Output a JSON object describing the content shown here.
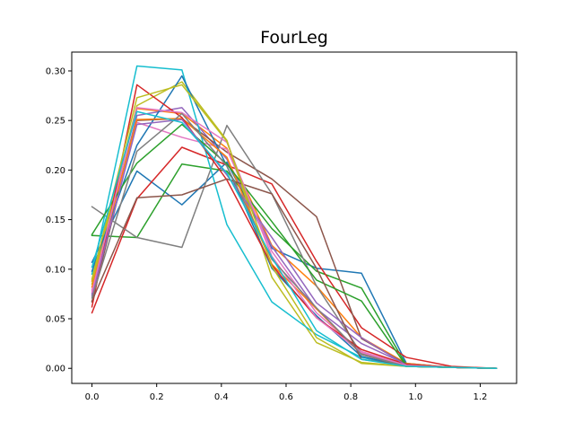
{
  "chart_data": {
    "type": "line",
    "title": "FourLeg",
    "xlabel": "",
    "ylabel": "",
    "xlim": [
      -0.0625,
      1.3125
    ],
    "ylim": [
      -0.0152,
      0.319
    ],
    "xticks": [
      0.0,
      0.2,
      0.4,
      0.6,
      0.8,
      1.0,
      1.2
    ],
    "xtick_labels": [
      "0.0",
      "0.2",
      "0.4",
      "0.6",
      "0.8",
      "1.0",
      "1.2"
    ],
    "yticks": [
      0.0,
      0.05,
      0.1,
      0.15,
      0.2,
      0.25,
      0.3
    ],
    "ytick_labels": [
      "0.00",
      "0.05",
      "0.10",
      "0.15",
      "0.20",
      "0.25",
      "0.30"
    ],
    "grid": false,
    "legend": "none",
    "x": [
      0.0,
      0.139,
      0.278,
      0.417,
      0.556,
      0.694,
      0.833,
      0.972,
      1.111,
      1.25
    ],
    "series": [
      {
        "color": "#1f77b4",
        "values": [
          0.107,
          0.199,
          0.165,
          0.208,
          0.121,
          0.101,
          0.096,
          0.005,
          0.001,
          0.0
        ]
      },
      {
        "color": "#ff7f0e",
        "values": [
          0.088,
          0.262,
          0.257,
          0.222,
          0.124,
          0.083,
          0.031,
          0.005,
          0.001,
          0.0
        ]
      },
      {
        "color": "#2ca02c",
        "values": [
          0.134,
          0.132,
          0.206,
          0.199,
          0.141,
          0.098,
          0.081,
          0.003,
          0.001,
          0.0
        ]
      },
      {
        "color": "#d62728",
        "values": [
          0.056,
          0.171,
          0.223,
          0.205,
          0.186,
          0.108,
          0.041,
          0.011,
          0.002,
          0.0
        ]
      },
      {
        "color": "#9467bd",
        "values": [
          0.075,
          0.255,
          0.263,
          0.211,
          0.123,
          0.06,
          0.025,
          0.004,
          0.001,
          0.0
        ]
      },
      {
        "color": "#8c564b",
        "values": [
          0.067,
          0.25,
          0.252,
          0.218,
          0.191,
          0.153,
          0.03,
          0.004,
          0.001,
          0.0
        ]
      },
      {
        "color": "#e377c2",
        "values": [
          0.079,
          0.248,
          0.233,
          0.221,
          0.118,
          0.056,
          0.017,
          0.003,
          0.001,
          0.0
        ]
      },
      {
        "color": "#7f7f7f",
        "values": [
          0.163,
          0.132,
          0.122,
          0.245,
          0.176,
          0.083,
          0.015,
          0.002,
          0.001,
          0.0
        ]
      },
      {
        "color": "#bcbd22",
        "values": [
          0.085,
          0.265,
          0.289,
          0.23,
          0.092,
          0.026,
          0.006,
          0.002,
          0.001,
          0.0
        ]
      },
      {
        "color": "#17becf",
        "values": [
          0.095,
          0.305,
          0.301,
          0.145,
          0.067,
          0.034,
          0.011,
          0.002,
          0.001,
          0.0
        ]
      },
      {
        "color": "#1f77b4",
        "values": [
          0.098,
          0.225,
          0.295,
          0.204,
          0.101,
          0.053,
          0.012,
          0.002,
          0.001,
          0.0
        ]
      },
      {
        "color": "#ff7f0e",
        "values": [
          0.082,
          0.251,
          0.252,
          0.213,
          0.105,
          0.06,
          0.014,
          0.002,
          0.001,
          0.0
        ]
      },
      {
        "color": "#2ca02c",
        "values": [
          0.135,
          0.207,
          0.246,
          0.206,
          0.148,
          0.089,
          0.068,
          0.002,
          0.001,
          0.0
        ]
      },
      {
        "color": "#d62728",
        "values": [
          0.062,
          0.286,
          0.253,
          0.19,
          0.104,
          0.051,
          0.019,
          0.004,
          0.001,
          0.0
        ]
      },
      {
        "color": "#9467bd",
        "values": [
          0.073,
          0.246,
          0.251,
          0.195,
          0.132,
          0.066,
          0.031,
          0.003,
          0.001,
          0.0
        ]
      },
      {
        "color": "#8c564b",
        "values": [
          0.068,
          0.172,
          0.175,
          0.191,
          0.176,
          0.101,
          0.009,
          0.003,
          0.001,
          0.0
        ]
      },
      {
        "color": "#e377c2",
        "values": [
          0.077,
          0.263,
          0.258,
          0.228,
          0.113,
          0.051,
          0.016,
          0.003,
          0.001,
          0.0
        ]
      },
      {
        "color": "#7f7f7f",
        "values": [
          0.071,
          0.219,
          0.257,
          0.204,
          0.11,
          0.061,
          0.014,
          0.002,
          0.001,
          0.0
        ]
      },
      {
        "color": "#bcbd22",
        "values": [
          0.09,
          0.273,
          0.286,
          0.229,
          0.103,
          0.031,
          0.005,
          0.002,
          0.001,
          0.0
        ]
      },
      {
        "color": "#17becf",
        "values": [
          0.102,
          0.259,
          0.248,
          0.197,
          0.112,
          0.038,
          0.009,
          0.002,
          0.001,
          0.0
        ]
      }
    ]
  }
}
